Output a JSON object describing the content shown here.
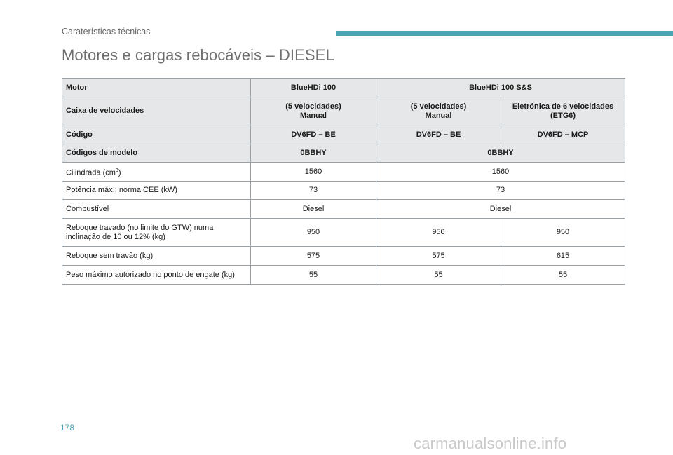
{
  "header": {
    "section": "Caraterísticas técnicas",
    "accent_color": "#4aa3b5"
  },
  "page_title": "Motores e cargas rebocáveis – DIESEL",
  "table": {
    "motor": {
      "label": "Motor",
      "col1": "BlueHDi 100",
      "col2": "BlueHDi 100 S&S"
    },
    "gearbox": {
      "label": "Caixa de velocidades",
      "col1_line1": "(5 velocidades)",
      "col1_line2": "Manual",
      "col2_line1": "(5 velocidades)",
      "col2_line2": "Manual",
      "col3_line1": "Eletrónica de 6 velocidades",
      "col3_line2": "(ETG6)"
    },
    "code": {
      "label": "Código",
      "col1": "DV6FD – BE",
      "col2": "DV6FD – BE",
      "col3": "DV6FD – MCP"
    },
    "model_codes": {
      "label": "Códigos de modelo",
      "col1": "0BBHY",
      "col2": "0BBHY"
    },
    "displacement": {
      "label": "Cilindrada (cm",
      "label_sup": "3",
      "label_end": ")",
      "col1": "1560",
      "col2": "1560"
    },
    "power": {
      "label": "Potência máx.: norma CEE (kW)",
      "col1": "73",
      "col2": "73"
    },
    "fuel": {
      "label": "Combustível",
      "col1": "Diesel",
      "col2": "Diesel"
    },
    "braked_trailer": {
      "label_line1": "Reboque travado (no limite do GTW) numa",
      "label_line2": "inclinação de 10 ou 12% (kg)",
      "col1": "950",
      "col2": "950",
      "col3": "950"
    },
    "unbraked_trailer": {
      "label": "Reboque sem travão (kg)",
      "col1": "575",
      "col2": "575",
      "col3": "615"
    },
    "nose_weight": {
      "label": "Peso máximo autorizado no ponto de engate (kg)",
      "col1": "55",
      "col2": "55",
      "col3": "55"
    }
  },
  "page_number": "178",
  "watermark": "carmanualsonline.info"
}
